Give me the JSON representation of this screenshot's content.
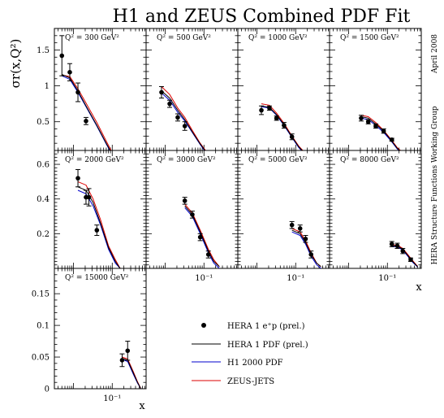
{
  "chart_data": {
    "type": "scatter",
    "title": "H1 and ZEUS Combined PDF Fit",
    "ylabel": "σr(x,Q²)",
    "xlabel": "x",
    "x_scale": "log",
    "side_labels": [
      "April 2008",
      "HERA Structure Functions Working Group"
    ],
    "legend": [
      {
        "name": "HERA 1 e⁺p (prel.)",
        "kind": "points",
        "color": "#000000"
      },
      {
        "name": "HERA 1 PDF (prel.)",
        "kind": "line",
        "color": "#000000"
      },
      {
        "name": "H1 2000 PDF",
        "kind": "line",
        "color": "#0000cc"
      },
      {
        "name": "ZEUS-JETS",
        "kind": "line",
        "color": "#dd0000"
      }
    ],
    "rows": [
      {
        "ylim": [
          0.1,
          1.8
        ],
        "yticks": [
          0.5,
          1,
          1.5
        ],
        "ytick_labels": [
          "0.5",
          "1",
          "1.5"
        ]
      },
      {
        "ylim": [
          0,
          0.68
        ],
        "yticks": [
          0.2,
          0.4,
          0.6
        ],
        "ytick_labels": [
          "0.2",
          "0.4",
          "0.6"
        ]
      },
      {
        "ylim": [
          0,
          0.19
        ],
        "yticks": [
          0,
          0.05,
          0.1,
          0.15
        ],
        "ytick_labels": [
          "0",
          "0.05",
          "0.1",
          "0.15"
        ]
      }
    ],
    "xlim": [
      0.0032,
      0.75
    ],
    "xtick_label": "10⁻¹",
    "panels": [
      {
        "label": "Q² = 300 GeV²",
        "row": 0,
        "col": 0,
        "points": [
          {
            "x": 0.005,
            "y": 1.42,
            "err": 0.28
          },
          {
            "x": 0.008,
            "y": 1.19,
            "err": 0.12
          },
          {
            "x": 0.013,
            "y": 0.91,
            "err": 0.13
          },
          {
            "x": 0.021,
            "y": 0.51,
            "err": 0.05
          }
        ],
        "curves": {
          "hera": [
            [
              0.005,
              1.16
            ],
            [
              0.008,
              1.11
            ],
            [
              0.013,
              0.93
            ],
            [
              0.021,
              0.72
            ],
            [
              0.04,
              0.45
            ],
            [
              0.07,
              0.2
            ],
            [
              0.1,
              0.05
            ]
          ],
          "h1": [
            [
              0.005,
              1.14
            ],
            [
              0.008,
              1.09
            ],
            [
              0.013,
              0.91
            ],
            [
              0.021,
              0.71
            ],
            [
              0.04,
              0.44
            ],
            [
              0.07,
              0.19
            ],
            [
              0.1,
              0.04
            ]
          ],
          "zeus": [
            [
              0.005,
              1.15
            ],
            [
              0.008,
              1.13
            ],
            [
              0.013,
              0.96
            ],
            [
              0.021,
              0.76
            ],
            [
              0.04,
              0.49
            ],
            [
              0.07,
              0.23
            ],
            [
              0.1,
              0.07
            ]
          ]
        }
      },
      {
        "label": "Q² = 500 GeV²",
        "row": 0,
        "col": 1,
        "points": [
          {
            "x": 0.008,
            "y": 0.91,
            "err": 0.08
          },
          {
            "x": 0.013,
            "y": 0.75,
            "err": 0.05
          },
          {
            "x": 0.021,
            "y": 0.56,
            "err": 0.05
          },
          {
            "x": 0.032,
            "y": 0.44,
            "err": 0.06
          }
        ],
        "curves": {
          "hera": [
            [
              0.008,
              0.93
            ],
            [
              0.013,
              0.83
            ],
            [
              0.021,
              0.66
            ],
            [
              0.032,
              0.53
            ],
            [
              0.05,
              0.36
            ],
            [
              0.08,
              0.19
            ],
            [
              0.12,
              0.06
            ]
          ],
          "h1": [
            [
              0.008,
              0.9
            ],
            [
              0.013,
              0.8
            ],
            [
              0.021,
              0.63
            ],
            [
              0.032,
              0.51
            ],
            [
              0.05,
              0.35
            ],
            [
              0.08,
              0.18
            ],
            [
              0.12,
              0.05
            ]
          ],
          "zeus": [
            [
              0.008,
              0.99
            ],
            [
              0.013,
              0.88
            ],
            [
              0.021,
              0.69
            ],
            [
              0.032,
              0.56
            ],
            [
              0.05,
              0.38
            ],
            [
              0.08,
              0.2
            ],
            [
              0.12,
              0.07
            ]
          ]
        }
      },
      {
        "label": "Q² = 1000 GeV²",
        "row": 0,
        "col": 2,
        "points": [
          {
            "x": 0.013,
            "y": 0.66,
            "err": 0.06
          },
          {
            "x": 0.021,
            "y": 0.69,
            "err": 0.03
          },
          {
            "x": 0.032,
            "y": 0.55,
            "err": 0.03
          },
          {
            "x": 0.05,
            "y": 0.45,
            "err": 0.04
          },
          {
            "x": 0.08,
            "y": 0.29,
            "err": 0.04
          }
        ],
        "curves": {
          "hera": [
            [
              0.013,
              0.72
            ],
            [
              0.021,
              0.7
            ],
            [
              0.032,
              0.6
            ],
            [
              0.05,
              0.46
            ],
            [
              0.08,
              0.29
            ],
            [
              0.12,
              0.15
            ],
            [
              0.18,
              0.05
            ]
          ],
          "h1": [
            [
              0.013,
              0.71
            ],
            [
              0.021,
              0.69
            ],
            [
              0.032,
              0.59
            ],
            [
              0.05,
              0.45
            ],
            [
              0.08,
              0.28
            ],
            [
              0.12,
              0.14
            ],
            [
              0.18,
              0.04
            ]
          ],
          "zeus": [
            [
              0.013,
              0.75
            ],
            [
              0.021,
              0.73
            ],
            [
              0.032,
              0.62
            ],
            [
              0.05,
              0.48
            ],
            [
              0.08,
              0.3
            ],
            [
              0.12,
              0.16
            ],
            [
              0.18,
              0.06
            ]
          ]
        }
      },
      {
        "label": "Q² = 1500 GeV²",
        "row": 0,
        "col": 3,
        "points": [
          {
            "x": 0.021,
            "y": 0.55,
            "err": 0.04
          },
          {
            "x": 0.032,
            "y": 0.5,
            "err": 0.03
          },
          {
            "x": 0.05,
            "y": 0.44,
            "err": 0.03
          },
          {
            "x": 0.08,
            "y": 0.37,
            "err": 0.03
          },
          {
            "x": 0.13,
            "y": 0.25,
            "err": 0.02
          }
        ],
        "curves": {
          "hera": [
            [
              0.021,
              0.57
            ],
            [
              0.032,
              0.55
            ],
            [
              0.05,
              0.47
            ],
            [
              0.08,
              0.37
            ],
            [
              0.13,
              0.23
            ],
            [
              0.18,
              0.13
            ],
            [
              0.25,
              0.06
            ]
          ],
          "h1": [
            [
              0.021,
              0.55
            ],
            [
              0.032,
              0.53
            ],
            [
              0.05,
              0.45
            ],
            [
              0.08,
              0.35
            ],
            [
              0.13,
              0.22
            ],
            [
              0.18,
              0.12
            ],
            [
              0.25,
              0.05
            ]
          ],
          "zeus": [
            [
              0.021,
              0.59
            ],
            [
              0.032,
              0.57
            ],
            [
              0.05,
              0.49
            ],
            [
              0.08,
              0.38
            ],
            [
              0.13,
              0.24
            ],
            [
              0.18,
              0.14
            ],
            [
              0.25,
              0.07
            ]
          ]
        }
      },
      {
        "label": "Q² = 2000 GeV²",
        "row": 1,
        "col": 0,
        "points": [
          {
            "x": 0.013,
            "y": 0.52,
            "err": 0.05
          },
          {
            "x": 0.021,
            "y": 0.41,
            "err": 0.04
          },
          {
            "x": 0.025,
            "y": 0.41,
            "err": 0.05
          },
          {
            "x": 0.04,
            "y": 0.22,
            "err": 0.03
          }
        ],
        "curves": {
          "hera": [
            [
              0.013,
              0.47
            ],
            [
              0.021,
              0.45
            ],
            [
              0.032,
              0.38
            ],
            [
              0.05,
              0.26
            ],
            [
              0.08,
              0.12
            ],
            [
              0.12,
              0.04
            ],
            [
              0.16,
              0.0
            ]
          ],
          "h1": [
            [
              0.013,
              0.45
            ],
            [
              0.021,
              0.43
            ],
            [
              0.032,
              0.36
            ],
            [
              0.05,
              0.25
            ],
            [
              0.08,
              0.11
            ],
            [
              0.12,
              0.03
            ],
            [
              0.16,
              0.0
            ]
          ],
          "zeus": [
            [
              0.013,
              0.5
            ],
            [
              0.021,
              0.48
            ],
            [
              0.032,
              0.4
            ],
            [
              0.05,
              0.28
            ],
            [
              0.08,
              0.13
            ],
            [
              0.12,
              0.05
            ],
            [
              0.16,
              0.0
            ]
          ]
        }
      },
      {
        "label": "Q² = 3000 GeV²",
        "row": 1,
        "col": 1,
        "points": [
          {
            "x": 0.032,
            "y": 0.39,
            "err": 0.02
          },
          {
            "x": 0.05,
            "y": 0.31,
            "err": 0.02
          },
          {
            "x": 0.08,
            "y": 0.18,
            "err": 0.02
          },
          {
            "x": 0.13,
            "y": 0.08,
            "err": 0.02
          }
        ],
        "curves": {
          "hera": [
            [
              0.032,
              0.36
            ],
            [
              0.05,
              0.31
            ],
            [
              0.08,
              0.21
            ],
            [
              0.13,
              0.1
            ],
            [
              0.18,
              0.04
            ],
            [
              0.25,
              0.01
            ]
          ],
          "h1": [
            [
              0.032,
              0.35
            ],
            [
              0.05,
              0.3
            ],
            [
              0.08,
              0.2
            ],
            [
              0.13,
              0.09
            ],
            [
              0.18,
              0.03
            ],
            [
              0.25,
              0.0
            ]
          ],
          "zeus": [
            [
              0.032,
              0.37
            ],
            [
              0.05,
              0.32
            ],
            [
              0.08,
              0.22
            ],
            [
              0.13,
              0.11
            ],
            [
              0.18,
              0.05
            ],
            [
              0.25,
              0.01
            ]
          ]
        }
      },
      {
        "label": "Q² = 5000 GeV²",
        "row": 1,
        "col": 2,
        "points": [
          {
            "x": 0.08,
            "y": 0.25,
            "err": 0.02
          },
          {
            "x": 0.13,
            "y": 0.23,
            "err": 0.02
          },
          {
            "x": 0.18,
            "y": 0.17,
            "err": 0.02
          },
          {
            "x": 0.25,
            "y": 0.08,
            "err": 0.02
          }
        ],
        "curves": {
          "hera": [
            [
              0.08,
              0.22
            ],
            [
              0.13,
              0.2
            ],
            [
              0.18,
              0.15
            ],
            [
              0.25,
              0.08
            ],
            [
              0.35,
              0.03
            ],
            [
              0.45,
              0.01
            ]
          ],
          "h1": [
            [
              0.08,
              0.21
            ],
            [
              0.13,
              0.19
            ],
            [
              0.18,
              0.14
            ],
            [
              0.25,
              0.07
            ],
            [
              0.35,
              0.02
            ],
            [
              0.45,
              0.0
            ]
          ],
          "zeus": [
            [
              0.08,
              0.23
            ],
            [
              0.13,
              0.21
            ],
            [
              0.18,
              0.16
            ],
            [
              0.25,
              0.09
            ],
            [
              0.35,
              0.03
            ],
            [
              0.45,
              0.01
            ]
          ]
        }
      },
      {
        "label": "Q² = 8000 GeV²",
        "row": 1,
        "col": 3,
        "points": [
          {
            "x": 0.13,
            "y": 0.14,
            "err": 0.015
          },
          {
            "x": 0.18,
            "y": 0.13,
            "err": 0.015
          },
          {
            "x": 0.25,
            "y": 0.1,
            "err": 0.015
          },
          {
            "x": 0.4,
            "y": 0.05,
            "err": 0.01
          }
        ],
        "curves": {
          "hera": [
            [
              0.13,
              0.13
            ],
            [
              0.18,
              0.13
            ],
            [
              0.25,
              0.11
            ],
            [
              0.35,
              0.07
            ],
            [
              0.45,
              0.04
            ],
            [
              0.6,
              0.01
            ]
          ],
          "h1": [
            [
              0.13,
              0.125
            ],
            [
              0.18,
              0.125
            ],
            [
              0.25,
              0.105
            ],
            [
              0.35,
              0.065
            ],
            [
              0.45,
              0.035
            ],
            [
              0.6,
              0.008
            ]
          ],
          "zeus": [
            [
              0.13,
              0.135
            ],
            [
              0.18,
              0.135
            ],
            [
              0.25,
              0.115
            ],
            [
              0.35,
              0.075
            ],
            [
              0.45,
              0.045
            ],
            [
              0.6,
              0.012
            ]
          ]
        }
      },
      {
        "label": "Q² = 15000 GeV²",
        "row": 2,
        "col": 0,
        "points": [
          {
            "x": 0.18,
            "y": 0.045,
            "err": 0.01
          },
          {
            "x": 0.25,
            "y": 0.06,
            "err": 0.015
          }
        ],
        "curves": {
          "hera": [
            [
              0.18,
              0.048
            ],
            [
              0.25,
              0.045
            ],
            [
              0.35,
              0.025
            ],
            [
              0.45,
              0.01
            ],
            [
              0.55,
              0.0
            ]
          ],
          "h1": [
            [
              0.18,
              0.046
            ],
            [
              0.25,
              0.043
            ],
            [
              0.35,
              0.023
            ],
            [
              0.45,
              0.009
            ],
            [
              0.55,
              0.0
            ]
          ],
          "zeus": [
            [
              0.18,
              0.05
            ],
            [
              0.25,
              0.047
            ],
            [
              0.35,
              0.027
            ],
            [
              0.45,
              0.011
            ],
            [
              0.55,
              0.0
            ]
          ]
        }
      }
    ]
  }
}
